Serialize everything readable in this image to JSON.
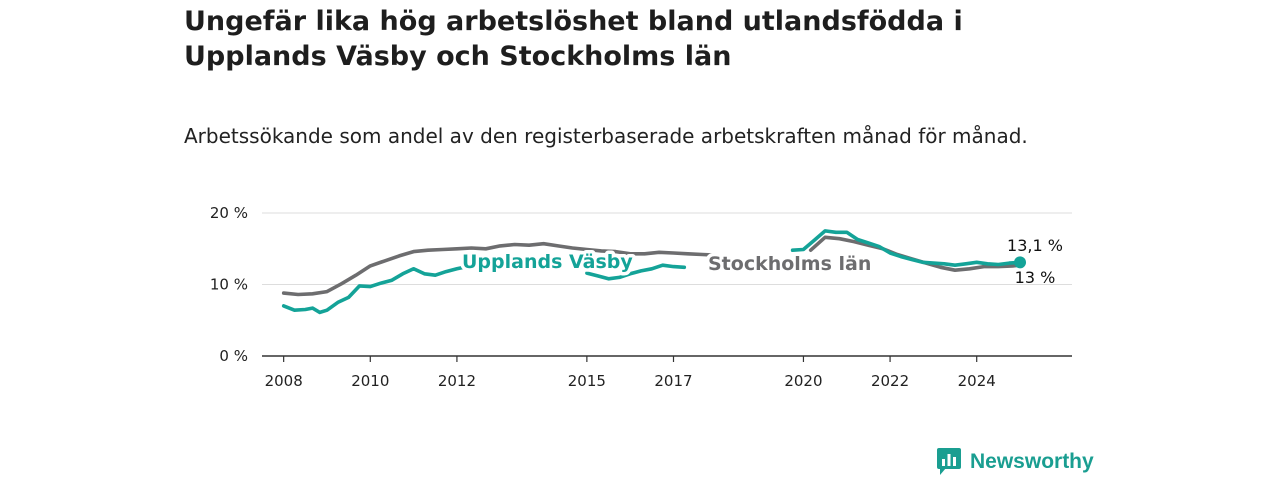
{
  "title": "Ungefär lika hög arbetslöshet bland utlandsfödda i Upplands Väsby och Stockholms län",
  "subtitle": "Arbetssökande som andel av den registerbaserade arbetskraften månad för månad.",
  "logo_text": "Newsworthy",
  "colors": {
    "upplands": "#14a398",
    "stockholm": "#6d6d6f",
    "grid": "#dddddd",
    "axis": "#333333"
  },
  "chart_data": {
    "type": "line",
    "y_ticks": [
      "0 %",
      "10 %",
      "20 %"
    ],
    "x_ticks": [
      "2008",
      "2010",
      "2012",
      "2015",
      "2017",
      "2020",
      "2022",
      "2024"
    ],
    "ylim": [
      0,
      20
    ],
    "grid": "horizontal",
    "series": [
      {
        "name": "Upplands Väsby",
        "color": "#14a398",
        "end_label": "13,1 %",
        "points": [
          [
            "2008-01",
            7.0
          ],
          [
            "2008-04",
            6.4
          ],
          [
            "2008-07",
            6.5
          ],
          [
            "2008-09",
            6.7
          ],
          [
            "2008-11",
            6.1
          ],
          [
            "2009-01",
            6.4
          ],
          [
            "2009-04",
            7.5
          ],
          [
            "2009-07",
            8.2
          ],
          [
            "2009-10",
            9.8
          ],
          [
            "2010-01",
            9.7
          ],
          [
            "2010-04",
            10.2
          ],
          [
            "2010-07",
            10.6
          ],
          [
            "2010-10",
            11.5
          ],
          [
            "2011-01",
            12.2
          ],
          [
            "2011-04",
            11.5
          ],
          [
            "2011-07",
            11.3
          ],
          [
            "2011-10",
            11.8
          ],
          [
            "2012-01",
            12.2
          ],
          [
            "2012-03",
            12.4
          ],
          [
            "2012-05",
            12.3
          ],
          [
            "2015-01",
            11.6
          ],
          [
            "2015-04",
            11.2
          ],
          [
            "2015-07",
            10.8
          ],
          [
            "2015-10",
            11.0
          ],
          [
            "2016-01",
            11.5
          ],
          [
            "2016-04",
            11.9
          ],
          [
            "2016-07",
            12.2
          ],
          [
            "2016-10",
            12.7
          ],
          [
            "2017-01",
            12.5
          ],
          [
            "2017-04",
            12.4
          ],
          [
            "2019-10",
            14.8
          ],
          [
            "2020-01",
            14.9
          ],
          [
            "2020-04",
            16.2
          ],
          [
            "2020-07",
            17.5
          ],
          [
            "2020-10",
            17.3
          ],
          [
            "2021-01",
            17.3
          ],
          [
            "2021-04",
            16.3
          ],
          [
            "2021-07",
            15.8
          ],
          [
            "2021-10",
            15.3
          ],
          [
            "2022-01",
            14.4
          ],
          [
            "2022-04",
            13.9
          ],
          [
            "2022-07",
            13.5
          ],
          [
            "2022-10",
            13.1
          ],
          [
            "2023-01",
            13.0
          ],
          [
            "2023-04",
            12.9
          ],
          [
            "2023-07",
            12.7
          ],
          [
            "2023-10",
            12.9
          ],
          [
            "2024-01",
            13.1
          ],
          [
            "2024-04",
            12.9
          ],
          [
            "2024-07",
            12.8
          ],
          [
            "2024-10",
            13.0
          ],
          [
            "2025-01",
            13.1
          ]
        ]
      },
      {
        "name": "Stockholms län",
        "color": "#6d6d6f",
        "end_label": "13 %",
        "points": [
          [
            "2008-01",
            8.8
          ],
          [
            "2008-05",
            8.6
          ],
          [
            "2008-09",
            8.7
          ],
          [
            "2009-01",
            9.0
          ],
          [
            "2009-05",
            10.1
          ],
          [
            "2009-09",
            11.3
          ],
          [
            "2010-01",
            12.6
          ],
          [
            "2010-05",
            13.3
          ],
          [
            "2010-09",
            14.0
          ],
          [
            "2011-01",
            14.6
          ],
          [
            "2011-05",
            14.8
          ],
          [
            "2011-09",
            14.9
          ],
          [
            "2012-01",
            15.0
          ],
          [
            "2012-05",
            15.1
          ],
          [
            "2012-09",
            15.0
          ],
          [
            "2013-01",
            15.4
          ],
          [
            "2013-05",
            15.6
          ],
          [
            "2013-09",
            15.5
          ],
          [
            "2014-01",
            15.7
          ],
          [
            "2014-05",
            15.4
          ],
          [
            "2014-09",
            15.1
          ],
          [
            "2015-01",
            14.9
          ],
          [
            "2015-05",
            14.7
          ],
          [
            "2015-09",
            14.6
          ],
          [
            "2016-01",
            14.3
          ],
          [
            "2016-05",
            14.3
          ],
          [
            "2016-09",
            14.5
          ],
          [
            "2017-01",
            14.4
          ],
          [
            "2017-05",
            14.3
          ],
          [
            "2017-09",
            14.2
          ],
          [
            "2018-01",
            14.1
          ],
          [
            "2020-03",
            14.8
          ],
          [
            "2020-07",
            16.6
          ],
          [
            "2020-11",
            16.4
          ],
          [
            "2021-03",
            16.0
          ],
          [
            "2021-07",
            15.5
          ],
          [
            "2021-11",
            15.0
          ],
          [
            "2022-03",
            14.2
          ],
          [
            "2022-07",
            13.6
          ],
          [
            "2022-11",
            13.0
          ],
          [
            "2023-03",
            12.4
          ],
          [
            "2023-07",
            12.0
          ],
          [
            "2023-11",
            12.2
          ],
          [
            "2024-03",
            12.5
          ],
          [
            "2024-07",
            12.5
          ],
          [
            "2024-11",
            12.6
          ],
          [
            "2025-01",
            12.7
          ]
        ]
      }
    ]
  }
}
